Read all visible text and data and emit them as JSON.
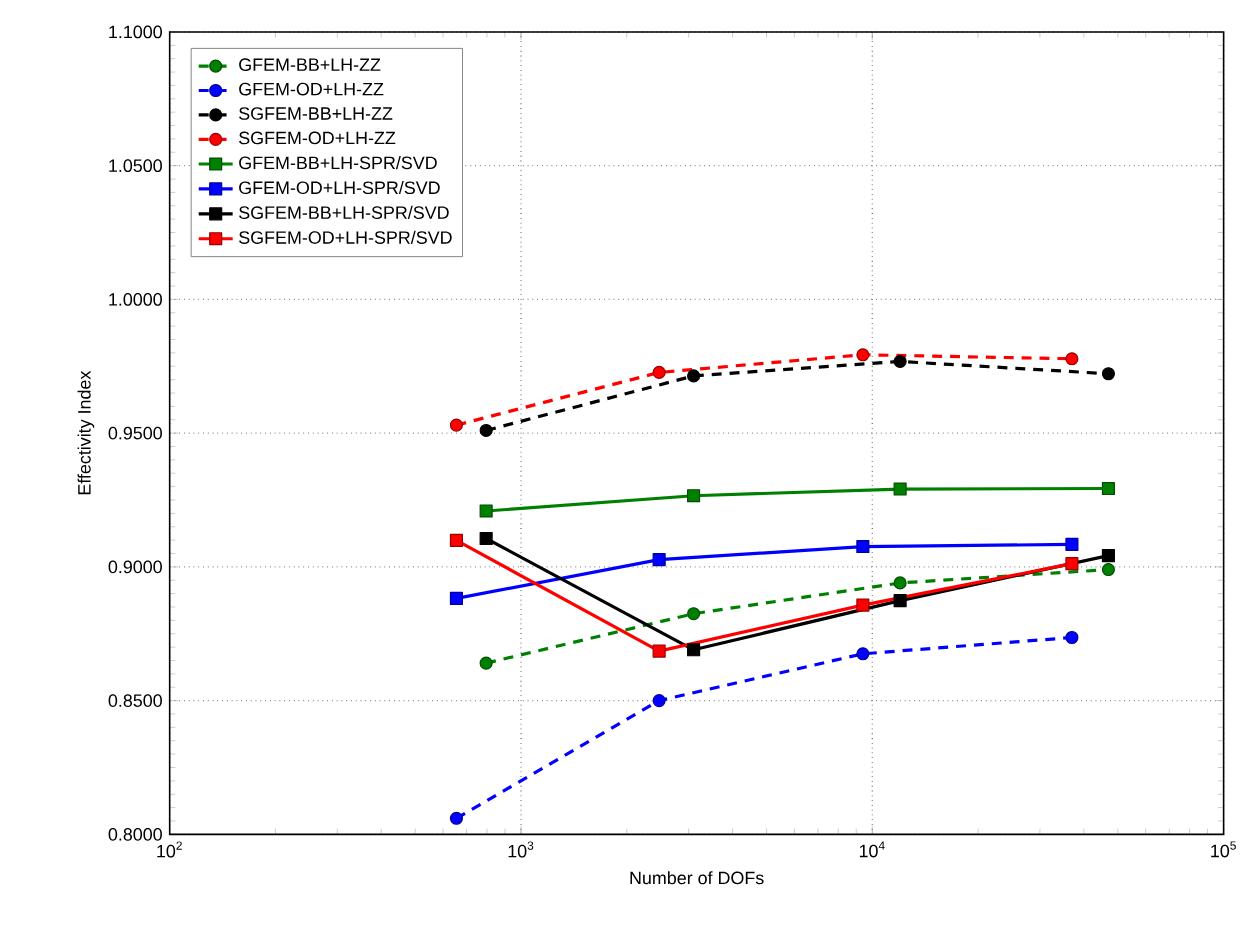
{
  "chart_data": {
    "type": "line",
    "xlabel": "Number of DOFs",
    "ylabel": "Effectivity Index",
    "log": "x",
    "grid": true,
    "legend": "top left",
    "xlim": [
      100,
      100000
    ],
    "xticks": [
      {
        "value": 100,
        "label": "10$^{2}$"
      },
      {
        "value": 1000,
        "label": "10$^{3}$"
      },
      {
        "value": 10000,
        "label": "10$^{4}$"
      },
      {
        "value": 100000,
        "label": "10$^{5}$"
      }
    ],
    "ylim": [
      0.8,
      1.1
    ],
    "yticks": [
      {
        "value": 0.8,
        "label": "0.8000"
      },
      {
        "value": 0.85,
        "label": "0.8500"
      },
      {
        "value": 0.9,
        "label": "0.9000"
      },
      {
        "value": 0.95,
        "label": "0.9500"
      },
      {
        "value": 1.0,
        "label": "1.0000"
      },
      {
        "value": 1.05,
        "label": "1.0500"
      },
      {
        "value": 1.1,
        "label": "1.1000"
      }
    ],
    "series": [
      {
        "name": "GFEM-BB+LH-ZZ",
        "color": "#008000",
        "marker": "circle",
        "line_style": "dashed",
        "x": [
          796,
          3100,
          12000,
          47000
        ],
        "values": [
          0.864,
          0.8825,
          0.894,
          0.899
        ]
      },
      {
        "name": "GFEM-OD+LH-ZZ",
        "color": "#0000ff",
        "marker": "circle",
        "line_style": "dashed",
        "x": [
          655,
          2473,
          9400,
          37000
        ],
        "values": [
          0.806,
          0.85,
          0.8675,
          0.8736
        ]
      },
      {
        "name": "SGFEM-BB+LH-ZZ",
        "color": "#000000",
        "marker": "circle",
        "line_style": "dashed",
        "x": [
          796,
          3100,
          12000,
          47000
        ],
        "values": [
          0.951,
          0.9714,
          0.9768,
          0.9722
        ]
      },
      {
        "name": "SGFEM-OD+LH-ZZ",
        "color": "#ff0000",
        "marker": "circle",
        "line_style": "dashed",
        "x": [
          655,
          2473,
          9400,
          37000
        ],
        "values": [
          0.953,
          0.9727,
          0.9793,
          0.9778
        ]
      },
      {
        "name": "GFEM-BB+LH-SPR/SVD",
        "color": "#008000",
        "marker": "square",
        "line_style": "solid",
        "x": [
          796,
          3100,
          12000,
          47000
        ],
        "values": [
          0.9209,
          0.9266,
          0.9291,
          0.9293
        ]
      },
      {
        "name": "GFEM-OD+LH-SPR/SVD",
        "color": "#0000ff",
        "marker": "square",
        "line_style": "solid",
        "x": [
          655,
          2473,
          9400,
          37000
        ],
        "values": [
          0.8882,
          0.9027,
          0.9076,
          0.9084
        ]
      },
      {
        "name": "SGFEM-BB+LH-SPR/SVD",
        "color": "#000000",
        "marker": "square",
        "line_style": "solid",
        "x": [
          796,
          3100,
          12000,
          47000
        ],
        "values": [
          0.9106,
          0.869,
          0.8874,
          0.9042
        ]
      },
      {
        "name": "SGFEM-OD+LH-SPR/SVD",
        "color": "#ff0000",
        "marker": "square",
        "line_style": "solid",
        "x": [
          655,
          2473,
          9400,
          37000
        ],
        "values": [
          0.9099,
          0.8685,
          0.8857,
          0.9012
        ]
      }
    ]
  }
}
